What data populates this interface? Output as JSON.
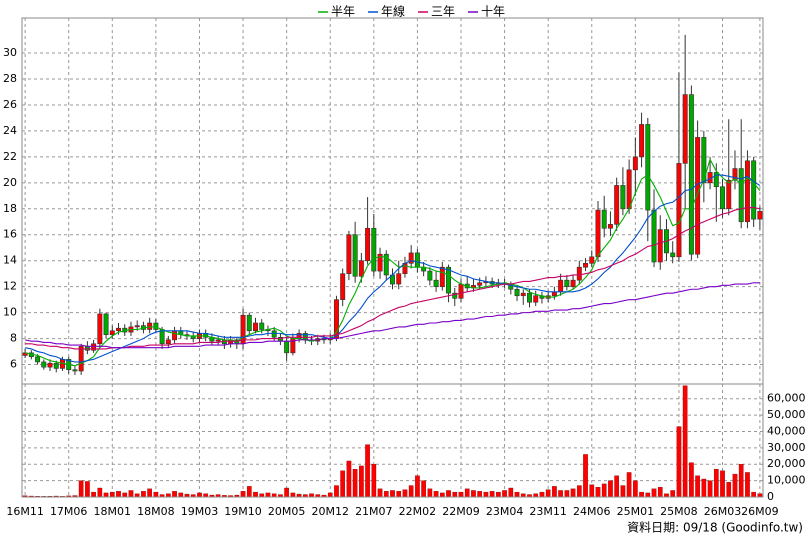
{
  "chart_data": {
    "type": "candlestick",
    "categories": [
      "16M11",
      null,
      null,
      null,
      null,
      null,
      null,
      "17M06",
      null,
      null,
      null,
      null,
      null,
      null,
      "18M01",
      null,
      null,
      null,
      null,
      null,
      null,
      "18M08",
      null,
      null,
      null,
      null,
      null,
      null,
      "19M03",
      null,
      null,
      null,
      null,
      null,
      null,
      "19M10",
      null,
      null,
      null,
      null,
      null,
      null,
      "20M05",
      null,
      null,
      null,
      null,
      null,
      null,
      "20M12",
      null,
      null,
      null,
      null,
      null,
      null,
      "21M07",
      null,
      null,
      null,
      null,
      null,
      null,
      "22M02",
      null,
      null,
      null,
      null,
      null,
      null,
      "22M09",
      null,
      null,
      null,
      null,
      null,
      null,
      "23M04",
      null,
      null,
      null,
      null,
      null,
      null,
      "23M11",
      null,
      null,
      null,
      null,
      null,
      null,
      "24M06",
      null,
      null,
      null,
      null,
      null,
      null,
      "25M01",
      null,
      null,
      null,
      null,
      null,
      null,
      "25M08",
      null,
      null,
      null,
      null,
      null,
      null,
      "26M03",
      null,
      null,
      null,
      null,
      null,
      "26M09"
    ],
    "open": [
      6.7,
      6.9,
      6.6,
      6.2,
      5.8,
      6.1,
      5.7,
      6.4,
      5.6,
      5.5,
      7.4,
      7.1,
      7.6,
      9.9,
      8.3,
      8.6,
      8.8,
      8.5,
      8.9,
      9.0,
      8.7,
      9.2,
      8.7,
      7.6,
      7.9,
      8.6,
      8.3,
      8.2,
      8.0,
      8.4,
      8.1,
      7.8,
      7.9,
      7.6,
      7.9,
      7.6,
      9.8,
      8.6,
      9.2,
      8.7,
      8.6,
      8.1,
      7.8,
      6.9,
      8.0,
      8.4,
      7.9,
      7.8,
      8.0,
      7.9,
      8.0,
      11.0,
      13.0,
      16.0,
      12.8,
      14.0,
      16.5,
      13.2,
      14.5,
      12.9,
      12.2,
      13.0,
      13.8,
      14.6,
      13.5,
      13.2,
      12.5,
      12.0,
      13.5,
      11.5,
      11.1,
      12.2,
      11.9,
      12.1,
      12.3,
      12.4,
      12.2,
      12.3,
      12.2,
      11.8,
      11.3,
      11.5,
      10.8,
      11.3,
      11.1,
      11.3,
      11.6,
      12.5,
      12.0,
      12.5,
      13.5,
      13.8,
      14.3,
      17.9,
      16.5,
      16.8,
      19.8,
      18.0,
      21.0,
      22.0,
      24.5,
      17.9,
      13.9,
      16.4,
      14.6,
      14.3,
      21.5,
      26.8,
      14.5,
      23.5,
      20.0,
      20.8,
      19.7,
      18.0,
      20.2,
      21.1,
      17.0,
      21.7,
      17.2
    ],
    "high": [
      7.2,
      7.1,
      6.8,
      6.4,
      6.4,
      6.3,
      6.6,
      6.6,
      5.9,
      7.6,
      7.8,
      7.9,
      10.3,
      10.0,
      9.0,
      9.2,
      9.1,
      9.3,
      9.4,
      9.3,
      9.6,
      9.5,
      8.9,
      8.2,
      8.9,
      8.9,
      8.6,
      8.5,
      8.7,
      8.7,
      8.4,
      8.2,
      8.2,
      8.2,
      8.1,
      10.3,
      10.0,
      9.6,
      9.5,
      9.0,
      8.9,
      8.4,
      8.1,
      8.4,
      8.7,
      8.6,
      8.2,
      8.3,
      8.3,
      8.4,
      11.3,
      13.4,
      16.3,
      17.0,
      14.6,
      18.9,
      17.6,
      15.0,
      14.8,
      13.4,
      14.0,
      14.3,
      15.2,
      14.9,
      13.9,
      13.5,
      13.2,
      13.9,
      13.7,
      11.9,
      12.6,
      12.8,
      12.6,
      12.7,
      12.8,
      12.7,
      12.6,
      12.6,
      12.4,
      12.1,
      11.8,
      11.8,
      11.7,
      11.6,
      11.7,
      12.0,
      13.0,
      12.9,
      12.9,
      14.0,
      14.2,
      14.8,
      18.6,
      19.0,
      17.8,
      20.4,
      21.2,
      21.8,
      23.5,
      25.4,
      25.0,
      19.5,
      17.5,
      17.2,
      15.5,
      28.5,
      31.4,
      27.5,
      24.8,
      24.0,
      22.0,
      21.5,
      20.3,
      24.9,
      22.5,
      24.9,
      22.5,
      22.0,
      18.2
    ],
    "low": [
      6.5,
      6.4,
      6.0,
      5.6,
      5.5,
      5.4,
      5.5,
      5.3,
      5.2,
      5.2,
      6.8,
      6.9,
      7.3,
      8.0,
      8.0,
      8.3,
      8.2,
      8.2,
      8.6,
      8.4,
      8.4,
      8.4,
      7.2,
      7.3,
      7.6,
      8.0,
      7.9,
      7.7,
      7.7,
      7.8,
      7.5,
      7.5,
      7.2,
      7.3,
      7.2,
      7.2,
      8.3,
      8.4,
      8.4,
      8.2,
      7.8,
      7.5,
      6.3,
      6.7,
      7.7,
      7.6,
      7.5,
      7.5,
      7.6,
      7.6,
      7.8,
      10.5,
      12.5,
      12.3,
      12.3,
      13.7,
      12.8,
      12.6,
      12.5,
      11.8,
      11.8,
      12.7,
      13.4,
      13.1,
      12.8,
      12.1,
      11.6,
      11.7,
      10.8,
      10.5,
      10.8,
      11.6,
      11.6,
      11.8,
      12.0,
      11.9,
      11.9,
      11.9,
      11.4,
      10.9,
      10.6,
      10.4,
      10.5,
      10.7,
      10.8,
      11.0,
      11.3,
      11.7,
      11.8,
      12.2,
      13.2,
      13.5,
      13.9,
      15.8,
      15.9,
      16.3,
      17.5,
      17.6,
      19.0,
      21.2,
      15.5,
      13.5,
      13.3,
      14.0,
      13.8,
      13.9,
      18.0,
      14.0,
      14.2,
      18.5,
      19.5,
      17.0,
      17.3,
      17.5,
      19.5,
      16.5,
      16.5,
      16.6,
      16.4
    ],
    "close": [
      6.9,
      6.6,
      6.2,
      5.8,
      6.1,
      5.7,
      6.4,
      5.6,
      5.5,
      7.4,
      7.1,
      7.6,
      9.9,
      8.3,
      8.6,
      8.8,
      8.5,
      8.9,
      9.0,
      8.7,
      9.2,
      8.7,
      7.6,
      7.9,
      8.6,
      8.3,
      8.2,
      8.0,
      8.4,
      8.1,
      7.8,
      7.9,
      7.6,
      7.9,
      7.6,
      9.8,
      8.6,
      9.2,
      8.7,
      8.6,
      8.1,
      7.8,
      6.9,
      8.0,
      8.4,
      7.9,
      7.8,
      8.0,
      7.9,
      8.0,
      11.0,
      13.0,
      16.0,
      12.8,
      14.0,
      16.5,
      13.2,
      14.5,
      12.9,
      12.2,
      13.0,
      13.8,
      14.6,
      13.5,
      13.2,
      12.5,
      12.0,
      13.5,
      11.5,
      11.1,
      12.2,
      11.9,
      12.1,
      12.3,
      12.4,
      12.2,
      12.3,
      12.2,
      11.8,
      11.3,
      11.5,
      10.8,
      11.3,
      11.1,
      11.3,
      11.6,
      12.5,
      12.0,
      12.5,
      13.5,
      13.8,
      14.3,
      17.9,
      16.5,
      16.8,
      19.8,
      18.0,
      21.0,
      22.0,
      24.5,
      17.9,
      13.9,
      16.4,
      14.6,
      14.3,
      21.5,
      26.8,
      14.5,
      23.5,
      20.0,
      20.8,
      19.7,
      18.0,
      20.2,
      21.1,
      17.0,
      21.7,
      17.2,
      17.8
    ],
    "up_color": "#ff0000",
    "down_color": "#00a800",
    "series": [
      {
        "name": "半年",
        "color": "#00b000",
        "values": [
          6.9,
          6.8,
          6.7,
          6.5,
          6.3,
          6.2,
          6.1,
          6.0,
          5.9,
          6.1,
          6.3,
          6.6,
          7.3,
          7.8,
          8.2,
          8.5,
          8.6,
          8.7,
          8.7,
          8.8,
          8.9,
          8.9,
          8.7,
          8.5,
          8.4,
          8.3,
          8.2,
          8.2,
          8.2,
          8.2,
          8.1,
          8.0,
          7.9,
          7.9,
          7.8,
          8.1,
          8.3,
          8.5,
          8.6,
          8.7,
          8.8,
          8.6,
          8.2,
          8.0,
          8.0,
          7.9,
          7.8,
          7.9,
          8.0,
          8.0,
          8.5,
          9.4,
          10.6,
          11.5,
          12.6,
          13.6,
          14.2,
          14.3,
          14.3,
          13.9,
          13.5,
          13.6,
          13.5,
          13.5,
          13.5,
          13.4,
          13.2,
          13.1,
          12.9,
          12.5,
          12.2,
          12.0,
          11.9,
          11.9,
          12.0,
          12.1,
          12.2,
          12.3,
          12.2,
          12.1,
          11.9,
          11.6,
          11.4,
          11.3,
          11.2,
          11.2,
          11.4,
          11.6,
          11.8,
          12.2,
          12.7,
          13.3,
          14.4,
          15.0,
          15.6,
          16.5,
          17.2,
          18.0,
          19.2,
          20.3,
          20.6,
          19.8,
          18.9,
          17.8,
          16.7,
          16.9,
          18.0,
          18.0,
          19.2,
          20.2,
          21.8,
          20.9,
          20.4,
          20.0,
          20.3,
          19.9,
          20.4,
          20.0,
          19.4
        ]
      },
      {
        "name": "年線",
        "color": "#0050d0",
        "values": [
          7.3,
          7.2,
          7.0,
          6.9,
          6.7,
          6.6,
          6.4,
          6.3,
          6.2,
          6.2,
          6.3,
          6.4,
          6.6,
          6.8,
          7.0,
          7.2,
          7.4,
          7.6,
          7.8,
          8.0,
          8.3,
          8.5,
          8.6,
          8.6,
          8.6,
          8.6,
          8.6,
          8.5,
          8.4,
          8.4,
          8.3,
          8.2,
          8.1,
          8.1,
          8.1,
          8.1,
          8.2,
          8.3,
          8.3,
          8.4,
          8.4,
          8.4,
          8.3,
          8.3,
          8.3,
          8.3,
          8.3,
          8.2,
          8.1,
          8.0,
          8.2,
          8.7,
          9.3,
          9.8,
          10.4,
          11.1,
          11.6,
          12.0,
          12.5,
          12.9,
          13.4,
          13.8,
          14.0,
          13.9,
          13.8,
          13.6,
          13.5,
          13.4,
          13.3,
          13.1,
          12.9,
          12.8,
          12.6,
          12.5,
          12.4,
          12.3,
          12.3,
          12.2,
          12.1,
          12.0,
          11.9,
          11.8,
          11.8,
          11.7,
          11.6,
          11.6,
          11.6,
          11.6,
          11.6,
          11.7,
          11.9,
          12.2,
          12.6,
          13.1,
          13.5,
          14.1,
          14.6,
          15.2,
          15.8,
          16.5,
          17.3,
          17.8,
          18.2,
          18.4,
          18.5,
          18.9,
          19.4,
          19.5,
          19.9,
          20.1,
          20.3,
          20.6,
          20.6,
          20.5,
          20.4,
          20.3,
          20.5,
          20.1,
          19.8
        ]
      },
      {
        "name": "三年",
        "color": "#c80064",
        "values": [
          7.6,
          7.6,
          7.5,
          7.5,
          7.4,
          7.4,
          7.3,
          7.3,
          7.2,
          7.2,
          7.2,
          7.2,
          7.2,
          7.2,
          7.3,
          7.3,
          7.3,
          7.4,
          7.4,
          7.4,
          7.5,
          7.5,
          7.5,
          7.5,
          7.6,
          7.6,
          7.6,
          7.6,
          7.7,
          7.7,
          7.7,
          7.7,
          7.8,
          7.8,
          7.8,
          7.9,
          7.9,
          7.9,
          8.0,
          8.0,
          8.0,
          8.0,
          8.1,
          8.1,
          8.1,
          8.1,
          8.1,
          8.2,
          8.2,
          8.2,
          8.3,
          8.4,
          8.6,
          8.8,
          9.0,
          9.3,
          9.5,
          9.8,
          10.0,
          10.2,
          10.4,
          10.5,
          10.7,
          10.8,
          10.9,
          11.0,
          11.1,
          11.2,
          11.3,
          11.4,
          11.5,
          11.6,
          11.7,
          11.8,
          11.9,
          12.0,
          12.1,
          12.2,
          12.2,
          12.3,
          12.4,
          12.4,
          12.5,
          12.6,
          12.7,
          12.7,
          12.8,
          12.8,
          12.9,
          12.9,
          13.0,
          13.1,
          13.3,
          13.4,
          13.6,
          13.8,
          14.0,
          14.3,
          14.5,
          14.8,
          15.1,
          15.2,
          15.4,
          15.5,
          15.7,
          16.0,
          16.3,
          16.5,
          16.8,
          17.0,
          17.2,
          17.4,
          17.6,
          17.7,
          17.9,
          18.0,
          18.1,
          18.1,
          18.0
        ]
      },
      {
        "name": "十年",
        "color": "#7a00c8",
        "values": [
          7.9,
          7.8,
          7.8,
          7.7,
          7.7,
          7.6,
          7.6,
          7.5,
          7.5,
          7.5,
          7.4,
          7.4,
          7.4,
          7.4,
          7.3,
          7.3,
          7.3,
          7.3,
          7.3,
          7.3,
          7.3,
          7.3,
          7.3,
          7.3,
          7.4,
          7.4,
          7.4,
          7.4,
          7.4,
          7.5,
          7.5,
          7.5,
          7.5,
          7.6,
          7.6,
          7.6,
          7.7,
          7.7,
          7.7,
          7.8,
          7.8,
          7.8,
          7.8,
          7.8,
          7.9,
          7.9,
          7.9,
          7.9,
          8.0,
          8.0,
          8.0,
          8.1,
          8.2,
          8.3,
          8.4,
          8.5,
          8.6,
          8.6,
          8.7,
          8.8,
          8.9,
          8.9,
          9.0,
          9.1,
          9.1,
          9.2,
          9.2,
          9.3,
          9.3,
          9.4,
          9.4,
          9.5,
          9.5,
          9.6,
          9.7,
          9.7,
          9.8,
          9.8,
          9.9,
          9.9,
          10.0,
          10.0,
          10.1,
          10.1,
          10.1,
          10.2,
          10.2,
          10.2,
          10.3,
          10.3,
          10.4,
          10.5,
          10.6,
          10.7,
          10.7,
          10.8,
          10.9,
          11.0,
          11.0,
          11.1,
          11.2,
          11.3,
          11.4,
          11.5,
          11.5,
          11.6,
          11.7,
          11.8,
          11.8,
          11.9,
          12.0,
          12.0,
          12.1,
          12.1,
          12.2,
          12.2,
          12.2,
          12.3,
          12.3
        ]
      }
    ],
    "volume": {
      "color": "#ff0000",
      "values": [
        800,
        600,
        500,
        400,
        500,
        600,
        400,
        700,
        900,
        10000,
        9500,
        3000,
        5500,
        2500,
        3000,
        3500,
        2500,
        4000,
        2000,
        3500,
        5000,
        3000,
        1500,
        2000,
        3500,
        2500,
        1800,
        1500,
        2500,
        2000,
        1200,
        1500,
        1000,
        900,
        1200,
        3500,
        6500,
        3000,
        2000,
        2500,
        2000,
        1500,
        5500,
        2500,
        1800,
        1500,
        2000,
        1500,
        1200,
        2500,
        7000,
        16000,
        22000,
        17000,
        19000,
        32000,
        20000,
        5000,
        3500,
        4000,
        3500,
        4500,
        7000,
        13000,
        10000,
        5000,
        3500,
        2500,
        4000,
        3000,
        3000,
        5000,
        4000,
        3500,
        3000,
        3500,
        3000,
        4000,
        5500,
        3000,
        2000,
        1500,
        2000,
        3000,
        4500,
        6500,
        4000,
        4000,
        5000,
        7000,
        26000,
        7500,
        6000,
        8000,
        10000,
        13000,
        7000,
        15000,
        10000,
        3000,
        2500,
        5000,
        6000,
        2000,
        4000,
        43000,
        68000,
        21000,
        13000,
        11000,
        10000,
        17000,
        16000,
        9000,
        14000,
        20000,
        15000,
        3000,
        2000
      ]
    },
    "ylim": [
      4.5,
      32.7
    ],
    "yticks": [
      6,
      8,
      10,
      12,
      14,
      16,
      18,
      20,
      22,
      24,
      26,
      28,
      30
    ],
    "y2lim": [
      0,
      69000
    ],
    "y2ticks": [
      0,
      {
        "value": 10000,
        "label": "10,000"
      },
      {
        "value": 20000,
        "label": "20,000"
      },
      {
        "value": 30000,
        "label": "30,000"
      },
      {
        "value": 40000,
        "label": "40,000"
      },
      {
        "value": 50000,
        "label": "50,000"
      },
      {
        "value": 60000,
        "label": "60,000"
      }
    ],
    "grid": true,
    "source": "資料日期: 09/18 (Goodinfo.tw)"
  }
}
